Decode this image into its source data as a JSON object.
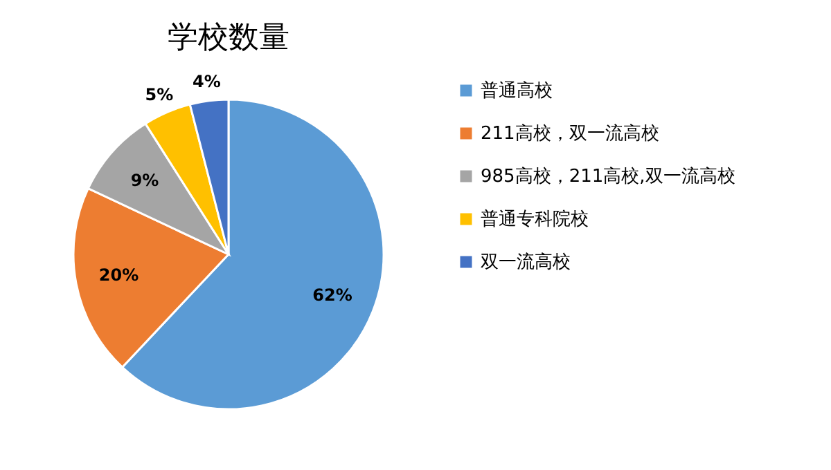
{
  "chart_data": {
    "type": "pie",
    "title": "学校数量",
    "categories": [
      "普通高校",
      "211高校，双一流高校",
      "985高校，211高校,双一流高校",
      "普通专科院校",
      "双一流高校"
    ],
    "values": [
      62,
      20,
      9,
      5,
      4
    ],
    "colors": [
      "#5b9bd5",
      "#ed7d31",
      "#a5a5a5",
      "#ffc000",
      "#4472c4"
    ],
    "value_labels": [
      "62%",
      "20%",
      "9%",
      "5%",
      "4%"
    ],
    "legend": "right"
  }
}
